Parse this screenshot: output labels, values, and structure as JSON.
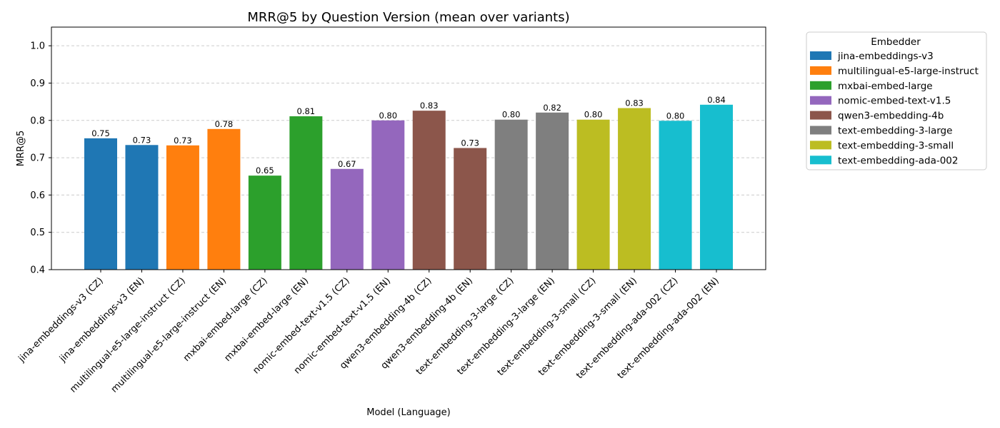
{
  "chart_data": {
    "type": "bar",
    "title": "MRR@5 by Question Version (mean over variants)",
    "xlabel": "Model (Language)",
    "ylabel": "MRR@5",
    "ylim": [
      0.4,
      1.05
    ],
    "yticks": [
      "0.4",
      "0.5",
      "0.6",
      "0.7",
      "0.8",
      "0.9",
      "1.0"
    ],
    "grid": "y, dashed",
    "legend": {
      "title": "Embedder",
      "placement": "outside-right-top",
      "entries": [
        {
          "name": "jina-embeddings-v3",
          "color": "#1f77b4"
        },
        {
          "name": "multilingual-e5-large-instruct",
          "color": "#ff7f0e"
        },
        {
          "name": "mxbai-embed-large",
          "color": "#2ca02c"
        },
        {
          "name": "nomic-embed-text-v1.5",
          "color": "#9467bd"
        },
        {
          "name": "qwen3-embedding-4b",
          "color": "#8c564b"
        },
        {
          "name": "text-embedding-3-large",
          "color": "#7f7f7f"
        },
        {
          "name": "text-embedding-3-small",
          "color": "#bcbd22"
        },
        {
          "name": "text-embedding-ada-002",
          "color": "#17becf"
        }
      ]
    },
    "categories": [
      "jina-embeddings-v3 (CZ)",
      "jina-embeddings-v3 (EN)",
      "multilingual-e5-large-instruct (CZ)",
      "multilingual-e5-large-instruct (EN)",
      "mxbai-embed-large (CZ)",
      "mxbai-embed-large (EN)",
      "nomic-embed-text-v1.5 (CZ)",
      "nomic-embed-text-v1.5 (EN)",
      "qwen3-embedding-4b (CZ)",
      "qwen3-embedding-4b (EN)",
      "text-embedding-3-large (CZ)",
      "text-embedding-3-large (EN)",
      "text-embedding-3-small (CZ)",
      "text-embedding-3-small (EN)",
      "text-embedding-ada-002 (CZ)",
      "text-embedding-ada-002 (EN)"
    ],
    "values": [
      0.752,
      0.734,
      0.733,
      0.777,
      0.652,
      0.811,
      0.67,
      0.8,
      0.826,
      0.726,
      0.802,
      0.821,
      0.802,
      0.833,
      0.799,
      0.842
    ],
    "value_labels": [
      "0.75",
      "0.73",
      "0.73",
      "0.78",
      "0.65",
      "0.81",
      "0.67",
      "0.80",
      "0.83",
      "0.73",
      "0.80",
      "0.82",
      "0.80",
      "0.83",
      "0.80",
      "0.84"
    ],
    "bar_embedder_index": [
      0,
      0,
      1,
      1,
      2,
      2,
      3,
      3,
      4,
      4,
      5,
      5,
      6,
      6,
      7,
      7
    ]
  }
}
